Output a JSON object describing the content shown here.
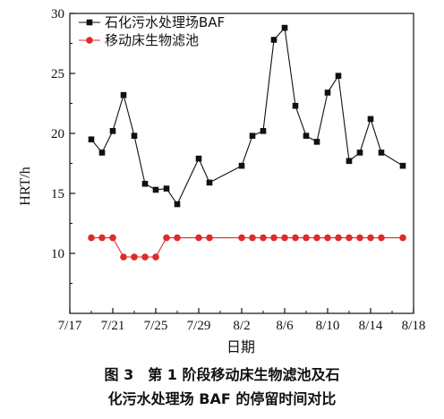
{
  "chart_data": {
    "type": "line",
    "title": "",
    "xlabel": "日期",
    "ylabel": "HRT/h",
    "xlim": [
      0,
      32
    ],
    "ylim": [
      5,
      30
    ],
    "x_ticks": [
      {
        "value": 0,
        "label": "7/17"
      },
      {
        "value": 4,
        "label": "7/21"
      },
      {
        "value": 8,
        "label": "7/25"
      },
      {
        "value": 12,
        "label": "7/29"
      },
      {
        "value": 16,
        "label": "8/2"
      },
      {
        "value": 20,
        "label": "8/6"
      },
      {
        "value": 24,
        "label": "8/10"
      },
      {
        "value": 28,
        "label": "8/14"
      },
      {
        "value": 32,
        "label": "8/18"
      }
    ],
    "y_ticks": [
      10,
      15,
      20,
      25,
      30
    ],
    "legend_position": "top-left",
    "series": [
      {
        "name": "石化污水处理场BAF",
        "color": "#111111",
        "marker": "square",
        "x": [
          2,
          3,
          4,
          5,
          6,
          7,
          8,
          9,
          10,
          12,
          13,
          16,
          17,
          18,
          19,
          20,
          21,
          22,
          23,
          24,
          25,
          26,
          27,
          28,
          29,
          31
        ],
        "y": [
          19.5,
          18.4,
          20.2,
          23.2,
          19.8,
          15.8,
          15.3,
          15.4,
          14.1,
          17.9,
          15.9,
          17.3,
          19.8,
          20.2,
          27.8,
          28.8,
          22.3,
          19.8,
          19.3,
          23.4,
          24.8,
          17.7,
          18.4,
          21.2,
          18.4,
          17.3
        ]
      },
      {
        "name": "移动床生物滤池",
        "color": "#e02a2a",
        "marker": "circle",
        "x": [
          2,
          3,
          4,
          5,
          6,
          7,
          8,
          9,
          10,
          12,
          13,
          16,
          17,
          18,
          19,
          20,
          21,
          22,
          23,
          24,
          25,
          26,
          27,
          28,
          29,
          31
        ],
        "y": [
          11.3,
          11.3,
          11.3,
          9.7,
          9.7,
          9.7,
          9.7,
          11.3,
          11.3,
          11.3,
          11.3,
          11.3,
          11.3,
          11.3,
          11.3,
          11.3,
          11.3,
          11.3,
          11.3,
          11.3,
          11.3,
          11.3,
          11.3,
          11.3,
          11.3,
          11.3
        ]
      }
    ]
  },
  "caption": {
    "line1": "图 3　第 1 阶段移动床生物滤池及石",
    "line2": "化污水处理场 BAF 的停留时间对比"
  }
}
